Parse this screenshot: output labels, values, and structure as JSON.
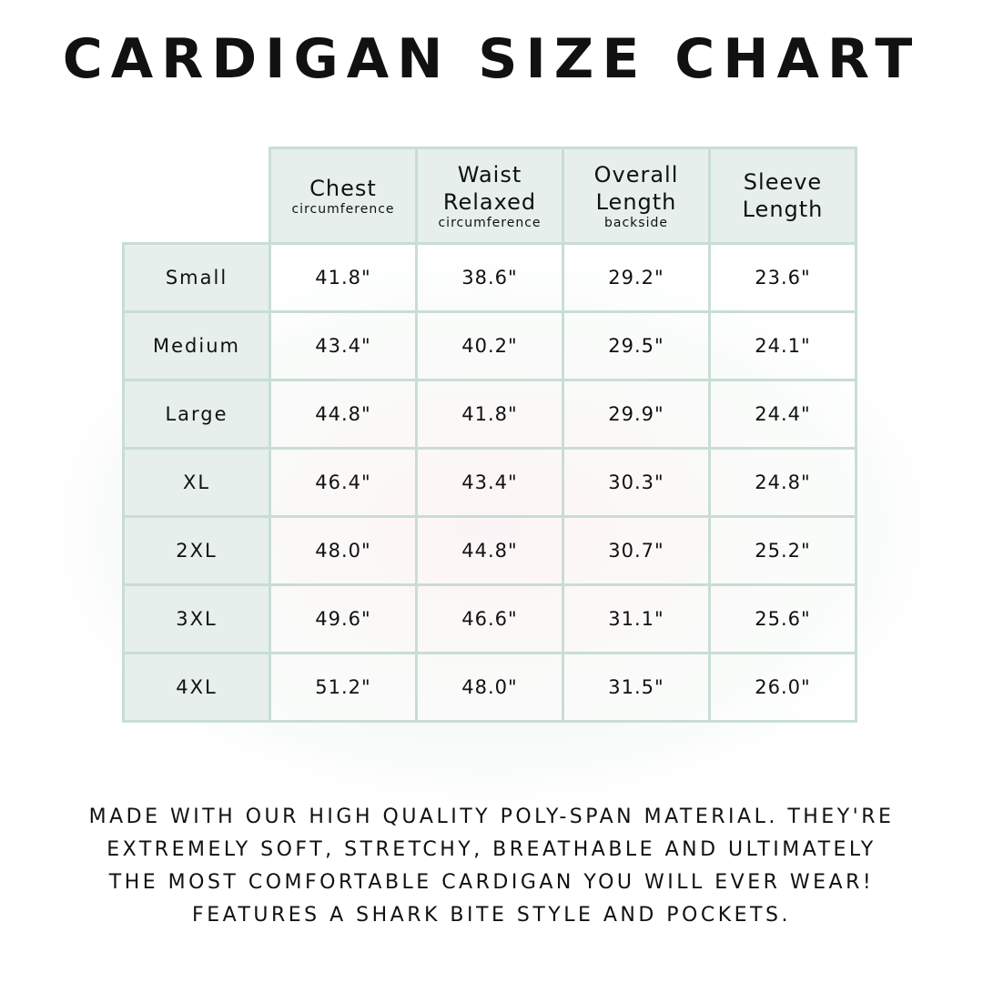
{
  "title": "CARDIGAN SIZE CHART",
  "columns": [
    {
      "main": [
        "Chest"
      ],
      "sub": "circumference"
    },
    {
      "main": [
        "Waist",
        "Relaxed"
      ],
      "sub": "circumference"
    },
    {
      "main": [
        "Overall",
        "Length"
      ],
      "sub": "backside"
    },
    {
      "main": [
        "Sleeve",
        "Length"
      ],
      "sub": ""
    }
  ],
  "rows": [
    {
      "size": "Small",
      "values": [
        "41.8\"",
        "38.6\"",
        "29.2\"",
        "23.6\""
      ]
    },
    {
      "size": "Medium",
      "values": [
        "43.4\"",
        "40.2\"",
        "29.5\"",
        "24.1\""
      ]
    },
    {
      "size": "Large",
      "values": [
        "44.8\"",
        "41.8\"",
        "29.9\"",
        "24.4\""
      ]
    },
    {
      "size": "XL",
      "values": [
        "46.4\"",
        "43.4\"",
        "30.3\"",
        "24.8\""
      ]
    },
    {
      "size": "2XL",
      "values": [
        "48.0\"",
        "44.8\"",
        "30.7\"",
        "25.2\""
      ]
    },
    {
      "size": "3XL",
      "values": [
        "49.6\"",
        "46.6\"",
        "31.1\"",
        "25.6\""
      ]
    },
    {
      "size": "4XL",
      "values": [
        "51.2\"",
        "48.0\"",
        "31.5\"",
        "26.0\""
      ]
    }
  ],
  "footer": [
    "Made with our high quality poly-span material. They're",
    "extremely soft, stretchy, breathable and ultimately",
    "the most comfortable cardigan you will ever wear!",
    "Features a shark bite style and pockets."
  ],
  "colors": {
    "border": "#c9ddd4",
    "header_bg": "#e6efeb"
  }
}
